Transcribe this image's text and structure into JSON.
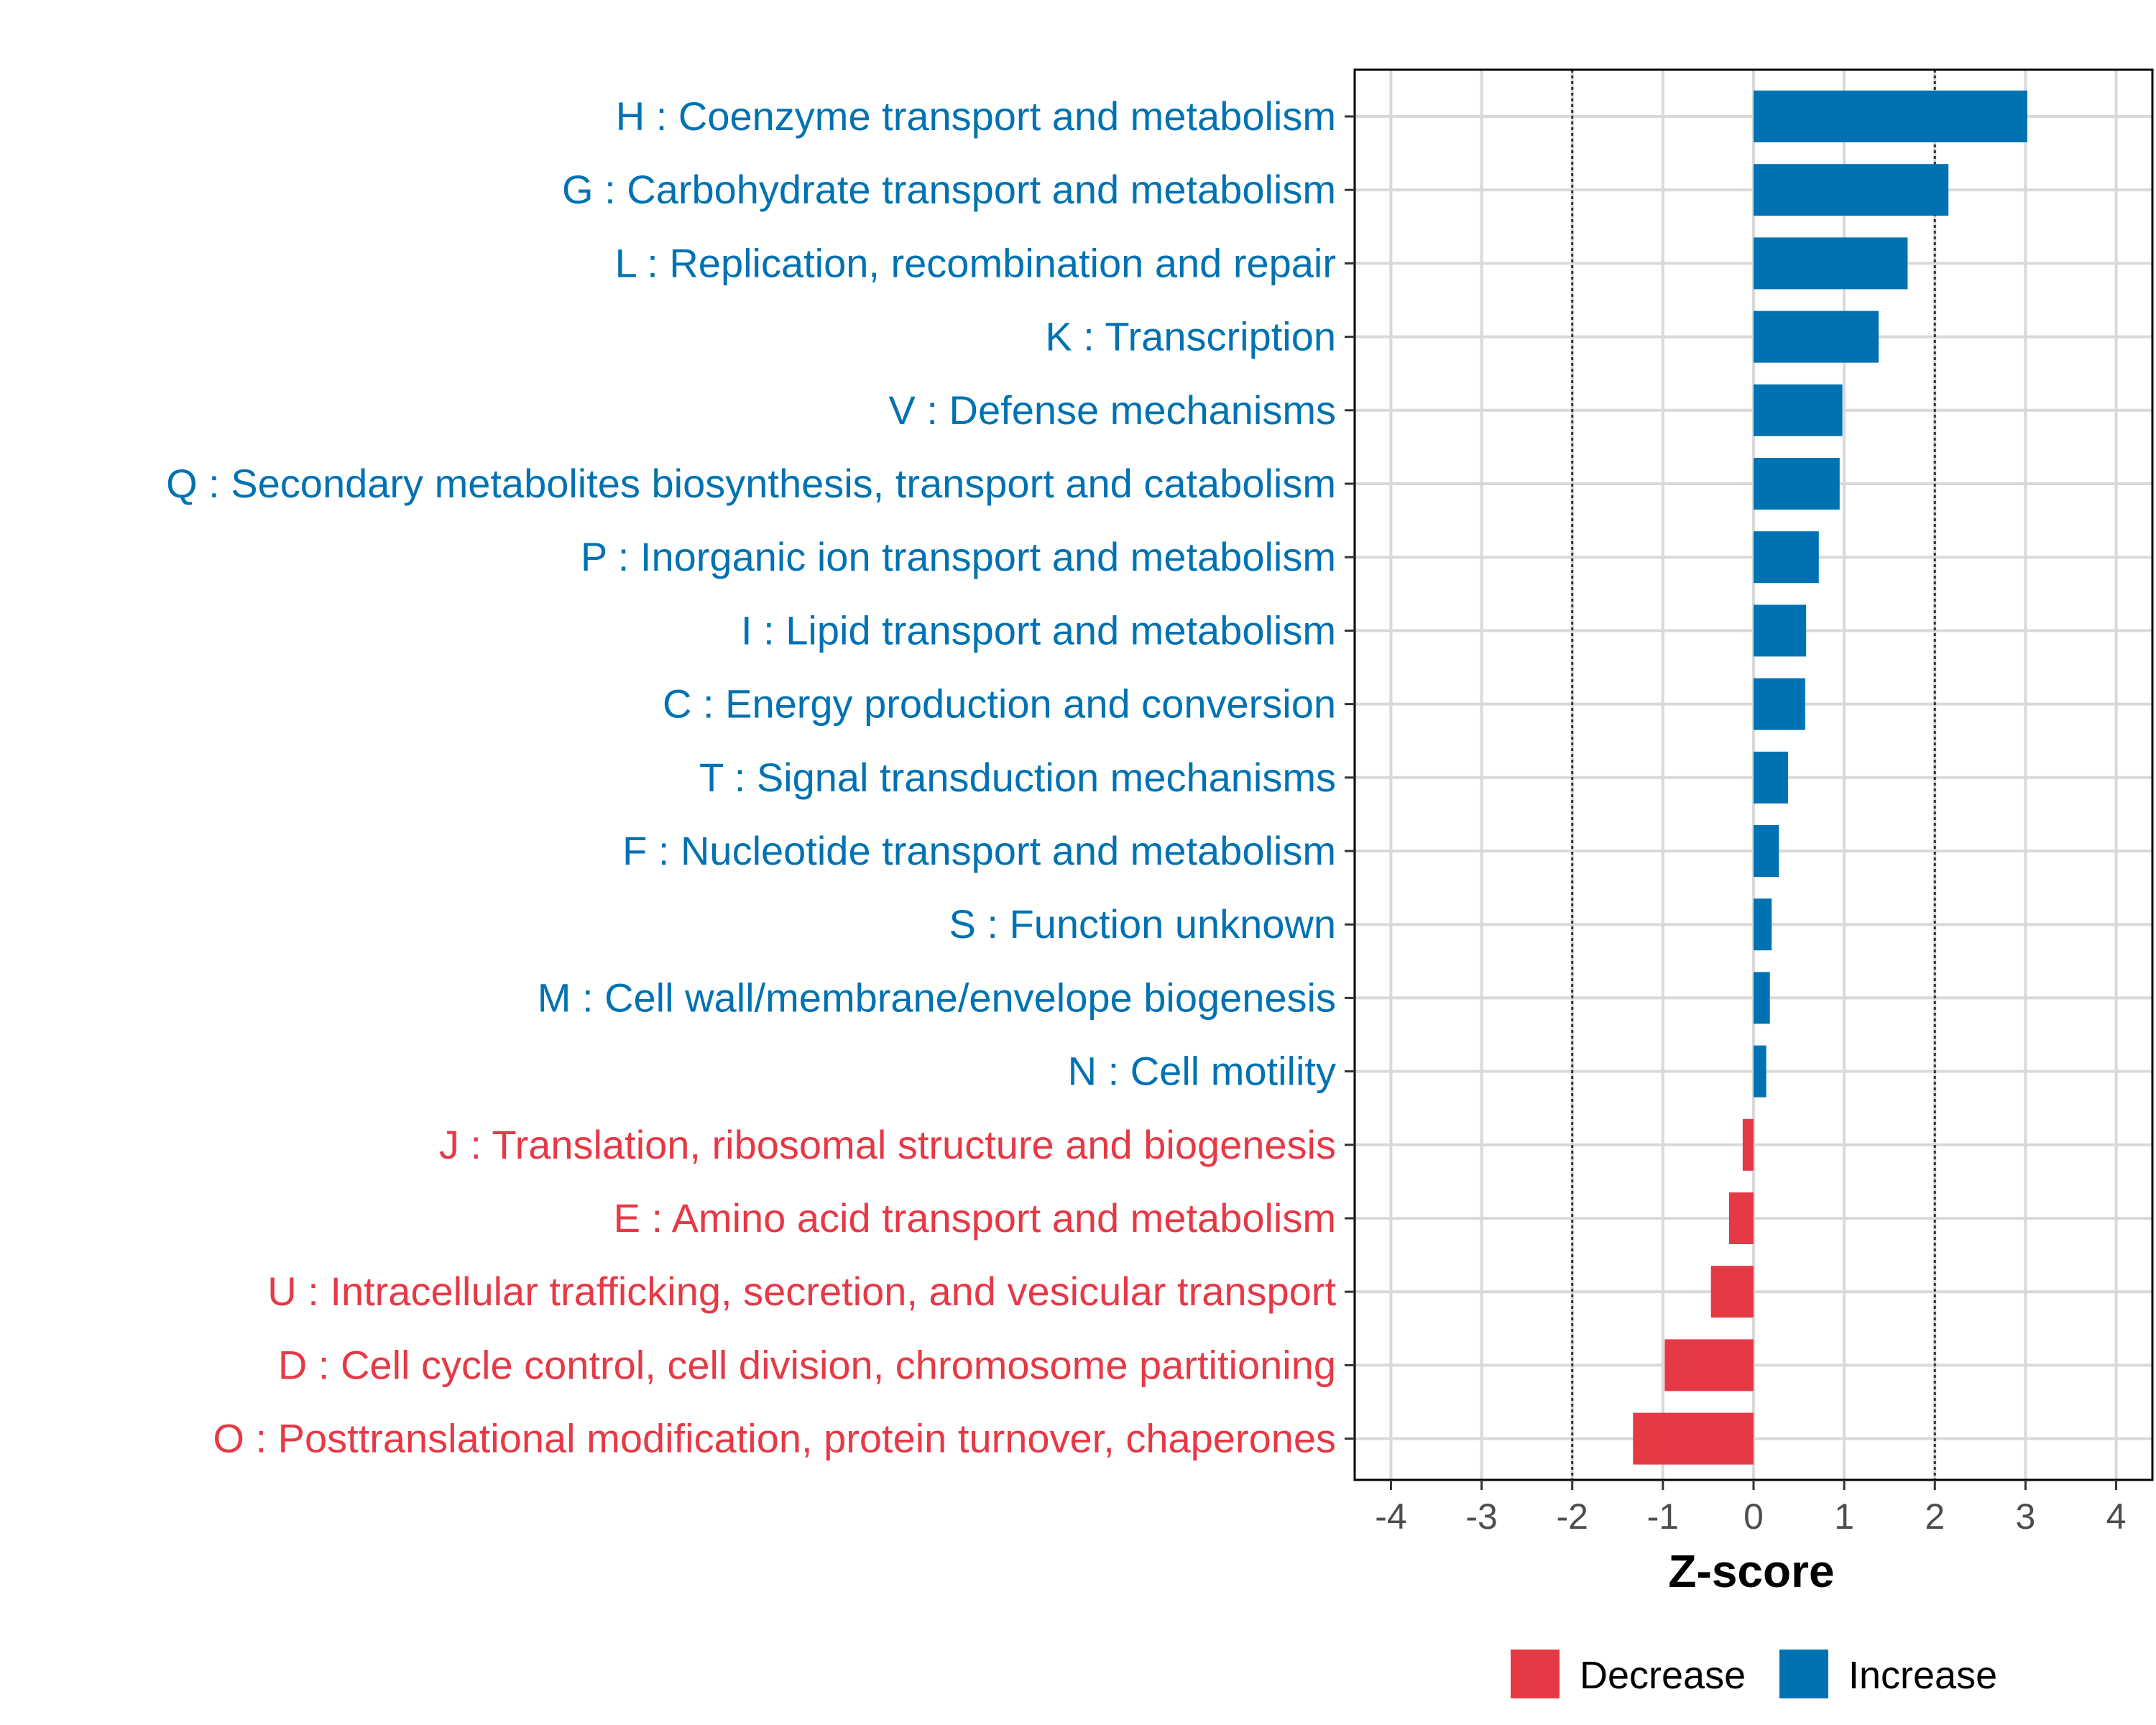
{
  "chart_data": {
    "type": "bar",
    "orientation": "horizontal",
    "categories": [
      "H : Coenzyme transport and metabolism",
      "G : Carbohydrate transport and metabolism",
      "L : Replication, recombination and repair",
      "K : Transcription",
      "V : Defense mechanisms",
      "Q : Secondary metabolites biosynthesis, transport and catabolism",
      "P : Inorganic ion transport and metabolism",
      "I : Lipid transport and metabolism",
      "C : Energy production and conversion",
      "T : Signal transduction mechanisms",
      "F : Nucleotide transport and metabolism",
      "S : Function unknown",
      "M : Cell wall/membrane/envelope biogenesis",
      "N : Cell motility",
      "J : Translation, ribosomal structure and biogenesis",
      "E : Amino acid transport and metabolism",
      "U : Intracellular trafficking, secretion, and vesicular transport",
      "D : Cell cycle control, cell division, chromosome partitioning",
      "O : Posttranslational modification, protein turnover, chaperones"
    ],
    "values": [
      3.02,
      2.15,
      1.7,
      1.38,
      0.98,
      0.95,
      0.72,
      0.58,
      0.57,
      0.38,
      0.28,
      0.2,
      0.18,
      0.14,
      -0.12,
      -0.27,
      -0.47,
      -0.98,
      -1.33
    ],
    "groups": [
      "Increase",
      "Increase",
      "Increase",
      "Increase",
      "Increase",
      "Increase",
      "Increase",
      "Increase",
      "Increase",
      "Increase",
      "Increase",
      "Increase",
      "Increase",
      "Increase",
      "Decrease",
      "Decrease",
      "Decrease",
      "Decrease",
      "Decrease"
    ],
    "xlabel": "Z-score",
    "xlim": [
      -4.4,
      4.4
    ],
    "xticks": [
      -4,
      -3,
      -2,
      -1,
      0,
      1,
      2,
      3,
      4
    ],
    "xtick_labels": [
      "-4",
      "-3",
      "-2",
      "-1",
      "0",
      "1",
      "2",
      "3",
      "4"
    ],
    "reference_lines": [
      -2,
      2
    ],
    "grid": true,
    "legend": {
      "position": "bottom",
      "entries": [
        {
          "label": "Decrease",
          "color": "#e63946"
        },
        {
          "label": "Increase",
          "color": "#0072b2"
        }
      ]
    },
    "colors": {
      "Increase": "#0072b2",
      "Decrease": "#e63946"
    }
  }
}
